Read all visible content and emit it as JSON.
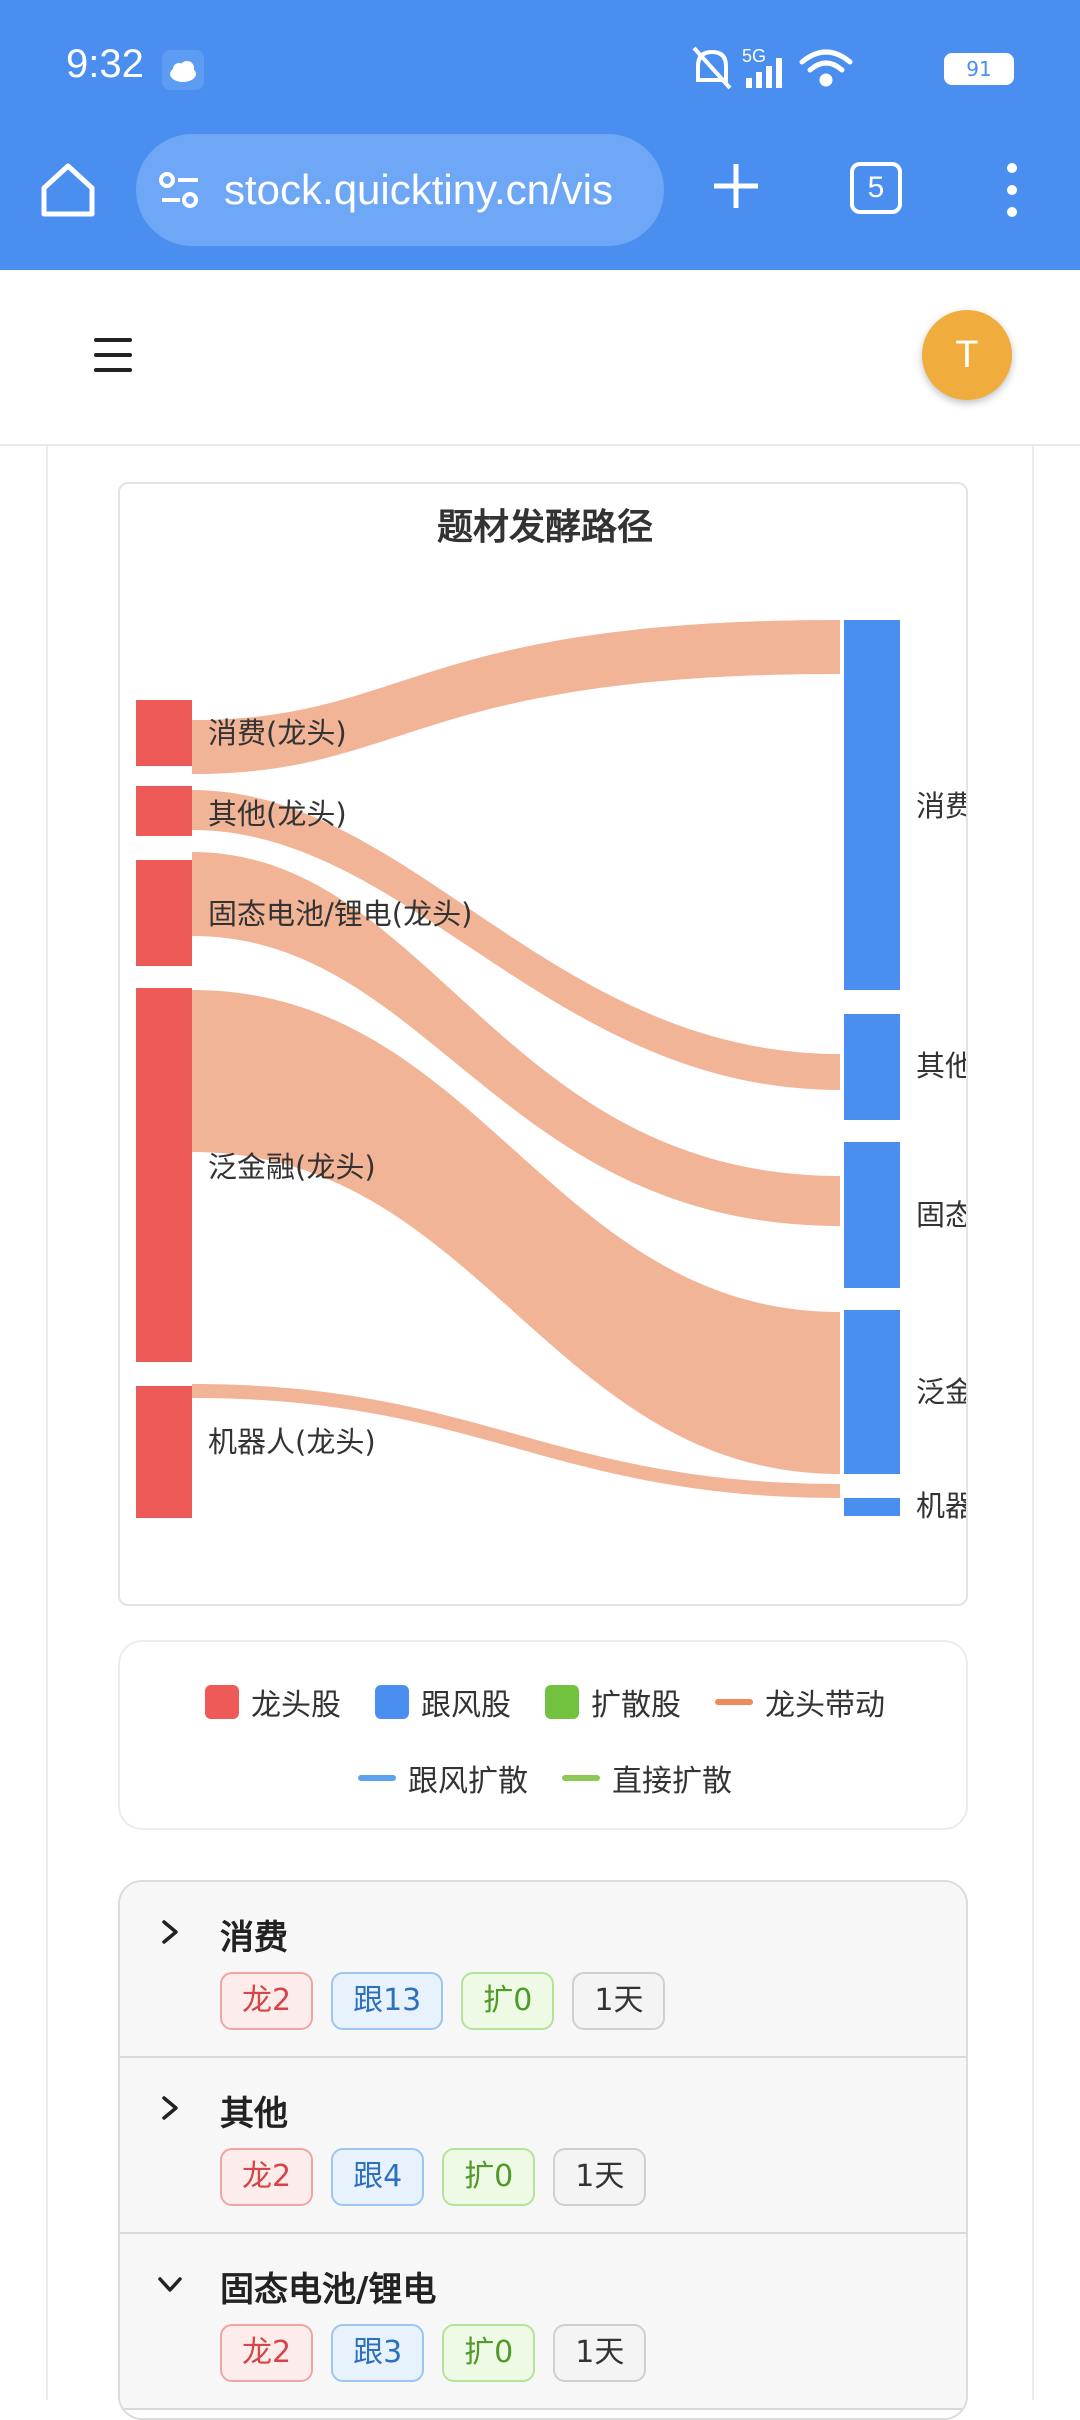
{
  "status_bar": {
    "time": "9:32",
    "battery": "91"
  },
  "browser": {
    "url": "stock.quicktiny.cn/vis",
    "tab_count": "5"
  },
  "header": {
    "avatar_letter": "T"
  },
  "chart": {
    "title": "题材发酵路径",
    "left_nodes": [
      "消费(龙头)",
      "其他(龙头)",
      "固态电池/锂电(龙头)",
      "泛金融(龙头)",
      "机器人(龙头)"
    ],
    "right_nodes": [
      "消费",
      "其他",
      "固态",
      "泛金",
      "机器"
    ],
    "colors": {
      "leader": "#ee5a58",
      "follower": "#4a8ff0",
      "flow": "#f2b496"
    }
  },
  "legend": {
    "items": [
      {
        "label": "龙头股",
        "color": "#ee5a58"
      },
      {
        "label": "跟风股",
        "color": "#4a8ff0"
      },
      {
        "label": "扩散股",
        "color": "#73c23f"
      },
      {
        "label": "龙头带动",
        "color": "#ee8a5e"
      }
    ],
    "lines": [
      {
        "label": "跟风扩散",
        "color": "#5ba3ef"
      },
      {
        "label": "直接扩散",
        "color": "#8cca55"
      }
    ]
  },
  "groups": [
    {
      "name": "消费",
      "tags": [
        "龙2",
        "跟13",
        "扩0",
        "1天"
      ],
      "expanded": false
    },
    {
      "name": "其他",
      "tags": [
        "龙2",
        "跟4",
        "扩0",
        "1天"
      ],
      "expanded": false
    },
    {
      "name": "固态电池/锂电",
      "tags": [
        "龙2",
        "跟3",
        "扩0",
        "1天"
      ],
      "expanded": true
    }
  ]
}
